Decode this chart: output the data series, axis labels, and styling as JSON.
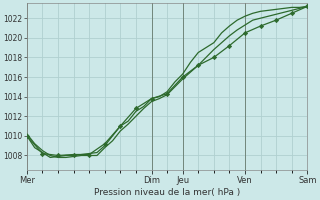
{
  "xlabel": "Pression niveau de la mer( hPa )",
  "bg_color": "#cce8e8",
  "grid_color": "#b0d0d0",
  "line_color": "#2d6a2d",
  "ylim": [
    1006.5,
    1023.5
  ],
  "yticks": [
    1008,
    1010,
    1012,
    1014,
    1016,
    1018,
    1020,
    1022
  ],
  "day_labels": [
    "Mer",
    "Dim",
    "Jeu",
    "Ven",
    "Sam"
  ],
  "day_positions": [
    0,
    16,
    20,
    28,
    36
  ],
  "xlim": [
    0,
    36
  ],
  "series1_x": [
    0,
    1,
    2,
    3,
    4,
    5,
    6,
    7,
    8,
    9,
    10,
    11,
    12,
    13,
    14,
    15,
    16,
    17,
    18,
    19,
    20,
    21,
    22,
    23,
    24,
    25,
    26,
    27,
    28,
    29,
    30,
    31,
    32,
    33,
    34,
    35,
    36
  ],
  "series1_y": [
    1010.0,
    1008.8,
    1008.3,
    1007.8,
    1007.9,
    1008.0,
    1008.0,
    1008.1,
    1008.2,
    1008.3,
    1009.0,
    1010.0,
    1011.0,
    1011.5,
    1012.5,
    1013.0,
    1013.8,
    1014.0,
    1014.5,
    1015.5,
    1016.3,
    1017.5,
    1018.5,
    1019.0,
    1019.5,
    1020.5,
    1021.2,
    1021.8,
    1022.2,
    1022.5,
    1022.7,
    1022.8,
    1022.9,
    1023.0,
    1023.1,
    1023.1,
    1023.2
  ],
  "series2_x": [
    0,
    1,
    2,
    3,
    4,
    5,
    6,
    7,
    8,
    9,
    10,
    11,
    12,
    13,
    14,
    15,
    16,
    17,
    18,
    19,
    20,
    21,
    22,
    23,
    24,
    25,
    26,
    27,
    28,
    29,
    30,
    31,
    32,
    33,
    34,
    35,
    36
  ],
  "series2_y": [
    1010.2,
    1009.2,
    1008.5,
    1008.0,
    1007.8,
    1007.8,
    1007.9,
    1008.0,
    1008.0,
    1008.0,
    1008.8,
    1009.5,
    1010.5,
    1011.2,
    1012.0,
    1012.8,
    1013.5,
    1013.8,
    1014.2,
    1015.0,
    1015.8,
    1016.5,
    1017.2,
    1018.0,
    1018.8,
    1019.5,
    1020.2,
    1020.8,
    1021.3,
    1021.8,
    1022.0,
    1022.2,
    1022.4,
    1022.6,
    1022.8,
    1023.0,
    1023.2
  ],
  "series3_x": [
    0,
    2,
    4,
    6,
    8,
    10,
    12,
    14,
    16,
    18,
    20,
    22,
    24,
    26,
    28,
    30,
    32,
    34,
    36
  ],
  "series3_y": [
    1010.0,
    1008.2,
    1008.0,
    1008.1,
    1008.1,
    1009.2,
    1011.0,
    1012.8,
    1013.8,
    1014.3,
    1016.0,
    1017.2,
    1018.0,
    1019.2,
    1020.5,
    1021.2,
    1021.8,
    1022.5,
    1023.2
  ]
}
